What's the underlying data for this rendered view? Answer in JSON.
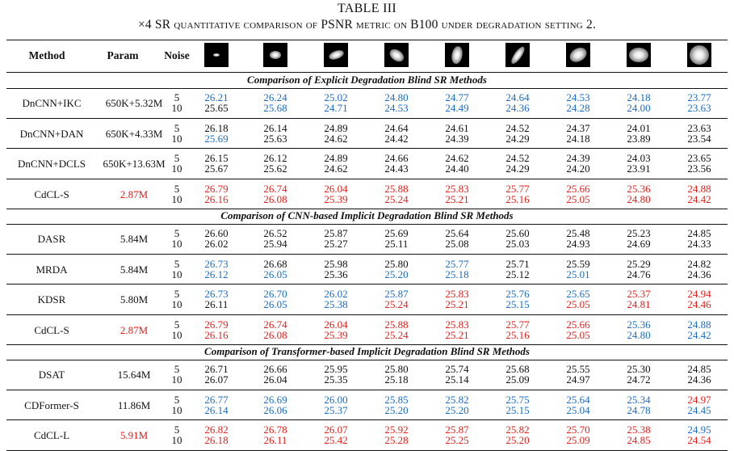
{
  "title": "TABLE III",
  "caption": "×4 SR quantitative comparison of PSNR metric on B100 under degradation setting 2.",
  "headers": {
    "method": "Method",
    "param": "Param",
    "noise": "Noise"
  },
  "kernel_icons": [
    {
      "name": "kernel-1-icon",
      "w": 0.25,
      "h": 0.12,
      "rot": 0
    },
    {
      "name": "kernel-2-icon",
      "w": 0.45,
      "h": 0.32,
      "rot": 0
    },
    {
      "name": "kernel-3-icon",
      "w": 0.62,
      "h": 0.32,
      "rot": -20
    },
    {
      "name": "kernel-4-icon",
      "w": 0.62,
      "h": 0.42,
      "rot": 35
    },
    {
      "name": "kernel-5-icon",
      "w": 0.72,
      "h": 0.42,
      "rot": -80
    },
    {
      "name": "kernel-6-icon",
      "w": 0.82,
      "h": 0.3,
      "rot": -55
    },
    {
      "name": "kernel-7-icon",
      "w": 0.72,
      "h": 0.52,
      "rot": -30
    },
    {
      "name": "kernel-8-icon",
      "w": 0.78,
      "h": 0.6,
      "rot": 0
    },
    {
      "name": "kernel-9-icon",
      "w": 0.82,
      "h": 0.82,
      "rot": 0
    }
  ],
  "colors": {
    "blue": "#1a6cc4",
    "red": "#e3201b",
    "black": "#111111"
  },
  "sections": [
    {
      "heading": "Comparison of Explicit Degradation Blind SR Methods",
      "rows": [
        {
          "method": "DnCNN+IKC",
          "param": "650K+5.32M",
          "param_color": "black",
          "noise": [
            "5",
            "10"
          ],
          "v5": [
            "26.21",
            "26.24",
            "25.02",
            "24.80",
            "24.77",
            "24.64",
            "24.53",
            "24.18",
            "23.77"
          ],
          "c5": [
            "blue",
            "blue",
            "blue",
            "blue",
            "blue",
            "blue",
            "blue",
            "blue",
            "blue"
          ],
          "v10": [
            "25.65",
            "25.68",
            "24.71",
            "24.53",
            "24.49",
            "24.36",
            "24.28",
            "24.00",
            "23.63"
          ],
          "c10": [
            "black",
            "blue",
            "blue",
            "blue",
            "blue",
            "blue",
            "blue",
            "blue",
            "blue"
          ]
        },
        {
          "method": "DnCNN+DAN",
          "param": "650K+4.33M",
          "param_color": "black",
          "noise": [
            "5",
            "10"
          ],
          "v5": [
            "26.18",
            "26.14",
            "24.89",
            "24.64",
            "24.61",
            "24.52",
            "24.37",
            "24.01",
            "23.63"
          ],
          "c5": [
            "black",
            "black",
            "black",
            "black",
            "black",
            "black",
            "black",
            "black",
            "black"
          ],
          "v10": [
            "25.69",
            "25.63",
            "24.62",
            "24.42",
            "24.39",
            "24.29",
            "24.18",
            "23.89",
            "23.54"
          ],
          "c10": [
            "blue",
            "black",
            "black",
            "black",
            "black",
            "black",
            "black",
            "black",
            "black"
          ]
        },
        {
          "method": "DnCNN+DCLS",
          "param": "650K+13.63M",
          "param_color": "black",
          "noise": [
            "5",
            "10"
          ],
          "v5": [
            "26.15",
            "26.12",
            "24.89",
            "24.66",
            "24.62",
            "24.52",
            "24.39",
            "24.03",
            "23.65"
          ],
          "c5": [
            "black",
            "black",
            "black",
            "black",
            "black",
            "black",
            "black",
            "black",
            "black"
          ],
          "v10": [
            "25.67",
            "25.62",
            "24.62",
            "24.43",
            "24.40",
            "24.29",
            "24.20",
            "23.91",
            "23.56"
          ],
          "c10": [
            "black",
            "black",
            "black",
            "black",
            "black",
            "black",
            "black",
            "black",
            "black"
          ]
        },
        {
          "method": "CdCL-S",
          "param": "2.87M",
          "param_color": "red",
          "noise": [
            "5",
            "10"
          ],
          "v5": [
            "26.79",
            "26.74",
            "26.04",
            "25.88",
            "25.83",
            "25.77",
            "25.66",
            "25.36",
            "24.88"
          ],
          "c5": [
            "red",
            "red",
            "red",
            "red",
            "red",
            "red",
            "red",
            "red",
            "red"
          ],
          "v10": [
            "26.16",
            "26.08",
            "25.39",
            "25.24",
            "25.21",
            "25.16",
            "25.05",
            "24.80",
            "24.42"
          ],
          "c10": [
            "red",
            "red",
            "red",
            "red",
            "red",
            "red",
            "red",
            "red",
            "red"
          ]
        }
      ]
    },
    {
      "heading": "Comparison of CNN-based Implicit Degradation Blind SR Methods",
      "rows": [
        {
          "method": "DASR",
          "param": "5.84M",
          "param_color": "black",
          "noise": [
            "5",
            "10"
          ],
          "v5": [
            "26.60",
            "26.52",
            "25.87",
            "25.69",
            "25.64",
            "25.60",
            "25.48",
            "25.23",
            "24.85"
          ],
          "c5": [
            "black",
            "black",
            "black",
            "black",
            "black",
            "black",
            "black",
            "black",
            "black"
          ],
          "v10": [
            "26.02",
            "25.94",
            "25.27",
            "25.11",
            "25.08",
            "25.03",
            "24.93",
            "24.69",
            "24.33"
          ],
          "c10": [
            "black",
            "black",
            "black",
            "black",
            "black",
            "black",
            "black",
            "black",
            "black"
          ]
        },
        {
          "method": "MRDA",
          "param": "5.84M",
          "param_color": "black",
          "noise": [
            "5",
            "10"
          ],
          "v5": [
            "26.73",
            "26.68",
            "25.98",
            "25.80",
            "25.77",
            "25.71",
            "25.59",
            "25.29",
            "24.82"
          ],
          "c5": [
            "blue",
            "black",
            "black",
            "black",
            "blue",
            "black",
            "black",
            "black",
            "black"
          ],
          "v10": [
            "26.12",
            "26.05",
            "25.36",
            "25.20",
            "25.18",
            "25.12",
            "25.01",
            "24.76",
            "24.36"
          ],
          "c10": [
            "blue",
            "blue",
            "black",
            "blue",
            "blue",
            "black",
            "blue",
            "black",
            "black"
          ]
        },
        {
          "method": "KDSR",
          "param": "5.80M",
          "param_color": "black",
          "noise": [
            "5",
            "10"
          ],
          "v5": [
            "26.73",
            "26.70",
            "26.02",
            "25.87",
            "25.83",
            "25.76",
            "25.65",
            "25.37",
            "24.94"
          ],
          "c5": [
            "blue",
            "blue",
            "blue",
            "blue",
            "red",
            "blue",
            "blue",
            "red",
            "red"
          ],
          "v10": [
            "26.11",
            "26.05",
            "25.38",
            "25.24",
            "25.21",
            "25.15",
            "25.05",
            "24.81",
            "24.46"
          ],
          "c10": [
            "black",
            "blue",
            "blue",
            "red",
            "red",
            "blue",
            "red",
            "red",
            "red"
          ]
        },
        {
          "method": "CdCL-S",
          "param": "2.87M",
          "param_color": "red",
          "noise": [
            "5",
            "10"
          ],
          "v5": [
            "26.79",
            "26.74",
            "26.04",
            "25.88",
            "25.83",
            "25.77",
            "25.66",
            "25.36",
            "24.88"
          ],
          "c5": [
            "red",
            "red",
            "red",
            "red",
            "red",
            "red",
            "red",
            "blue",
            "blue"
          ],
          "v10": [
            "26.16",
            "26.08",
            "25.39",
            "25.24",
            "25.21",
            "25.16",
            "25.05",
            "24.80",
            "24.42"
          ],
          "c10": [
            "red",
            "red",
            "red",
            "red",
            "red",
            "red",
            "red",
            "blue",
            "blue"
          ]
        }
      ]
    },
    {
      "heading": "Comparison of Transformer-based Implicit Degradation Blind SR Methods",
      "rows": [
        {
          "method": "DSAT",
          "param": "15.64M",
          "param_color": "black",
          "noise": [
            "5",
            "10"
          ],
          "v5": [
            "26.71",
            "26.66",
            "25.95",
            "25.80",
            "25.74",
            "25.68",
            "25.55",
            "25.30",
            "24.85"
          ],
          "c5": [
            "black",
            "black",
            "black",
            "black",
            "black",
            "black",
            "black",
            "black",
            "black"
          ],
          "v10": [
            "26.07",
            "26.04",
            "25.35",
            "25.18",
            "25.14",
            "25.09",
            "24.97",
            "24.72",
            "24.36"
          ],
          "c10": [
            "black",
            "black",
            "black",
            "black",
            "black",
            "black",
            "black",
            "black",
            "black"
          ]
        },
        {
          "method": "CDFormer-S",
          "param": "11.86M",
          "param_color": "black",
          "noise": [
            "5",
            "10"
          ],
          "v5": [
            "26.77",
            "26.69",
            "26.00",
            "25.85",
            "25.82",
            "25.75",
            "25.64",
            "25.34",
            "24.97"
          ],
          "c5": [
            "blue",
            "blue",
            "blue",
            "blue",
            "blue",
            "blue",
            "blue",
            "blue",
            "red"
          ],
          "v10": [
            "26.14",
            "26.06",
            "25.37",
            "25.20",
            "25.20",
            "25.15",
            "25.04",
            "24.78",
            "24.45"
          ],
          "c10": [
            "blue",
            "blue",
            "blue",
            "blue",
            "blue",
            "blue",
            "blue",
            "blue",
            "blue"
          ]
        },
        {
          "method": "CdCL-L",
          "param": "5.91M",
          "param_color": "red",
          "noise": [
            "5",
            "10"
          ],
          "v5": [
            "26.82",
            "26.78",
            "26.07",
            "25.92",
            "25.87",
            "25.82",
            "25.70",
            "25.38",
            "24.95"
          ],
          "c5": [
            "red",
            "red",
            "red",
            "red",
            "red",
            "red",
            "red",
            "red",
            "blue"
          ],
          "v10": [
            "26.18",
            "26.11",
            "25.42",
            "25.28",
            "25.25",
            "25.20",
            "25.09",
            "24.85",
            "24.54"
          ],
          "c10": [
            "red",
            "red",
            "red",
            "red",
            "red",
            "red",
            "red",
            "red",
            "red"
          ]
        }
      ]
    }
  ]
}
